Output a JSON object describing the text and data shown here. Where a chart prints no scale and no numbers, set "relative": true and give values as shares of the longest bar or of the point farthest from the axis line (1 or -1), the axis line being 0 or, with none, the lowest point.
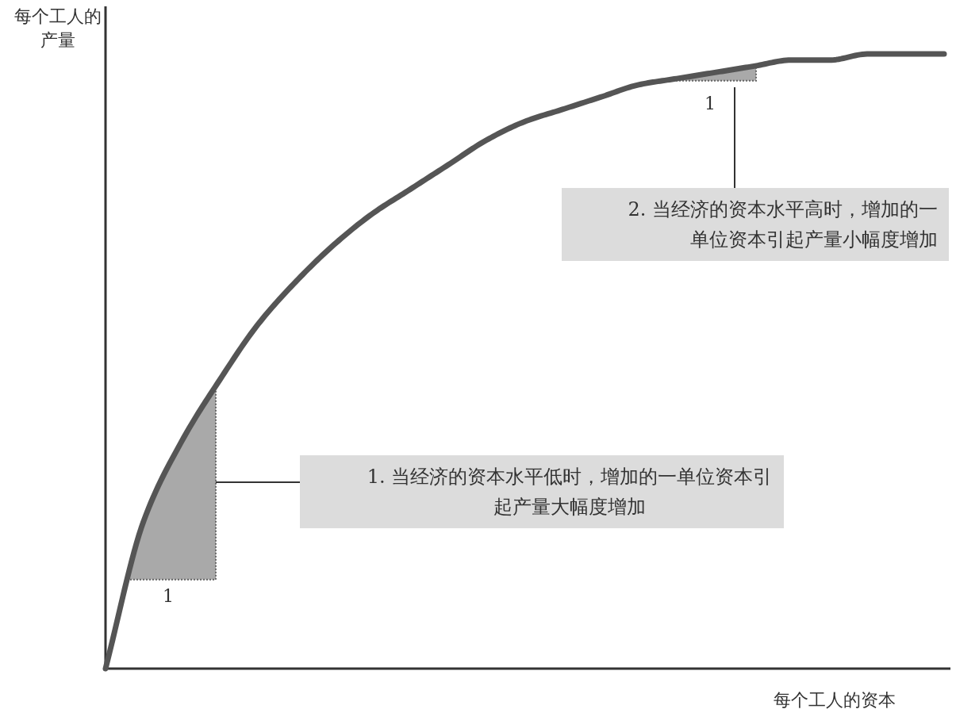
{
  "chart_data": {
    "type": "line",
    "relative": true,
    "xlabel": "每个工人的资本",
    "ylabel": "每个工人的产量",
    "categories": [
      null,
      null,
      null,
      null,
      null,
      null,
      null,
      null,
      null,
      null,
      null,
      null,
      null,
      null,
      null,
      null,
      null,
      null,
      null,
      null,
      null,
      null,
      null
    ],
    "series": [
      {
        "color": "#555555",
        "values": [
          0,
          0.24,
          0.37,
          0.47,
          0.56,
          0.63,
          0.69,
          0.74,
          0.78,
          0.82,
          0.86,
          0.89,
          0.91,
          0.93,
          0.95,
          0.96,
          0.97,
          0.98,
          0.99,
          0.99,
          1,
          1,
          1
        ]
      }
    ],
    "annotations": [
      "1. 当经济的资本水平低时，增加的一单位资本引起产量大幅度增加",
      "2. 当经济的资本水平高时，增加的一单位资本引起产量小幅度增加",
      "1",
      "1"
    ]
  }
}
